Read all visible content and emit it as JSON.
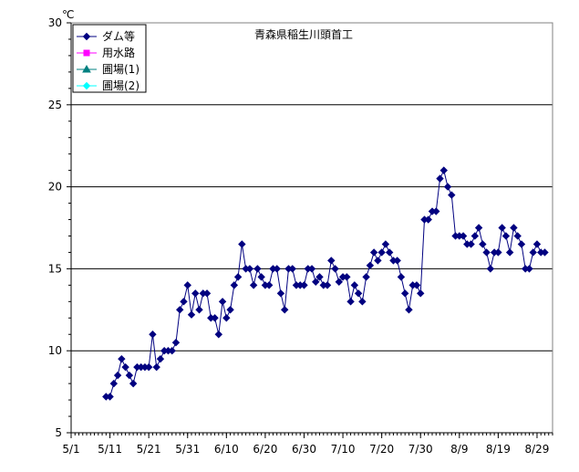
{
  "chart_data": {
    "type": "line",
    "title": "青森県稲生川頭首工",
    "unit": "℃",
    "xlabel": "",
    "ylabel": "",
    "ylim": [
      5,
      30
    ],
    "yticks": [
      5,
      10,
      15,
      20,
      25,
      30
    ],
    "xlim": [
      "5/1",
      "9/2"
    ],
    "xtick_labels": [
      "5/1",
      "5/11",
      "5/21",
      "5/31",
      "6/10",
      "6/20",
      "6/30",
      "7/10",
      "7/20",
      "7/30",
      "8/9",
      "8/19",
      "8/29"
    ],
    "grid": "horizontal at major y ticks",
    "legend": {
      "position": "top-left",
      "entries": [
        {
          "name": "ダム等",
          "color": "#000080",
          "marker": "diamond"
        },
        {
          "name": "用水路",
          "color": "#ff00ff",
          "marker": "square"
        },
        {
          "name": "圃場(1)",
          "color": "#008080",
          "marker": "triangle"
        },
        {
          "name": "圃場(2)",
          "color": "#00ffff",
          "marker": "diamond"
        }
      ]
    },
    "series": [
      {
        "name": "ダム等",
        "color": "#000080",
        "points": [
          [
            "5/10",
            7.2
          ],
          [
            "5/11",
            7.2
          ],
          [
            "5/12",
            8.0
          ],
          [
            "5/13",
            8.5
          ],
          [
            "5/14",
            9.5
          ],
          [
            "5/15",
            9.0
          ],
          [
            "5/16",
            8.5
          ],
          [
            "5/17",
            8.0
          ],
          [
            "5/18",
            9.0
          ],
          [
            "5/19",
            9.0
          ],
          [
            "5/20",
            9.0
          ],
          [
            "5/21",
            9.0
          ],
          [
            "5/22",
            11.0
          ],
          [
            "5/23",
            9.0
          ],
          [
            "5/24",
            9.5
          ],
          [
            "5/25",
            10.0
          ],
          [
            "5/26",
            10.0
          ],
          [
            "5/27",
            10.0
          ],
          [
            "5/28",
            10.5
          ],
          [
            "5/29",
            12.5
          ],
          [
            "5/30",
            13.0
          ],
          [
            "5/31",
            14.0
          ],
          [
            "6/1",
            12.2
          ],
          [
            "6/2",
            13.5
          ],
          [
            "6/3",
            12.5
          ],
          [
            "6/4",
            13.5
          ],
          [
            "6/5",
            13.5
          ],
          [
            "6/6",
            12.0
          ],
          [
            "6/7",
            12.0
          ],
          [
            "6/8",
            11.0
          ],
          [
            "6/9",
            13.0
          ],
          [
            "6/10",
            12.0
          ],
          [
            "6/11",
            12.5
          ],
          [
            "6/12",
            14.0
          ],
          [
            "6/13",
            14.5
          ],
          [
            "6/14",
            16.5
          ],
          [
            "6/15",
            15.0
          ],
          [
            "6/16",
            15.0
          ],
          [
            "6/17",
            14.0
          ],
          [
            "6/18",
            15.0
          ],
          [
            "6/19",
            14.5
          ],
          [
            "6/20",
            14.0
          ],
          [
            "6/21",
            14.0
          ],
          [
            "6/22",
            15.0
          ],
          [
            "6/23",
            15.0
          ],
          [
            "6/24",
            13.5
          ],
          [
            "6/25",
            12.5
          ],
          [
            "6/26",
            15.0
          ],
          [
            "6/27",
            15.0
          ],
          [
            "6/28",
            14.0
          ],
          [
            "6/29",
            14.0
          ],
          [
            "6/30",
            14.0
          ],
          [
            "7/1",
            15.0
          ],
          [
            "7/2",
            15.0
          ],
          [
            "7/3",
            14.2
          ],
          [
            "7/4",
            14.5
          ],
          [
            "7/5",
            14.0
          ],
          [
            "7/6",
            14.0
          ],
          [
            "7/7",
            15.5
          ],
          [
            "7/8",
            15.0
          ],
          [
            "7/9",
            14.2
          ],
          [
            "7/10",
            14.5
          ],
          [
            "7/11",
            14.5
          ],
          [
            "7/12",
            13.0
          ],
          [
            "7/13",
            14.0
          ],
          [
            "7/14",
            13.5
          ],
          [
            "7/15",
            13.0
          ],
          [
            "7/16",
            14.5
          ],
          [
            "7/17",
            15.2
          ],
          [
            "7/18",
            16.0
          ],
          [
            "7/19",
            15.5
          ],
          [
            "7/20",
            16.0
          ],
          [
            "7/21",
            16.5
          ],
          [
            "7/22",
            16.0
          ],
          [
            "7/23",
            15.5
          ],
          [
            "7/24",
            15.5
          ],
          [
            "7/25",
            14.5
          ],
          [
            "7/26",
            13.5
          ],
          [
            "7/27",
            12.5
          ],
          [
            "7/28",
            14.0
          ],
          [
            "7/29",
            14.0
          ],
          [
            "7/30",
            13.5
          ],
          [
            "7/31",
            18.0
          ],
          [
            "8/1",
            18.0
          ],
          [
            "8/2",
            18.5
          ],
          [
            "8/3",
            18.5
          ],
          [
            "8/4",
            20.5
          ],
          [
            "8/5",
            21.0
          ],
          [
            "8/6",
            20.0
          ],
          [
            "8/7",
            19.5
          ],
          [
            "8/8",
            17.0
          ],
          [
            "8/9",
            17.0
          ],
          [
            "8/10",
            17.0
          ],
          [
            "8/11",
            16.5
          ],
          [
            "8/12",
            16.5
          ],
          [
            "8/13",
            17.0
          ],
          [
            "8/14",
            17.5
          ],
          [
            "8/15",
            16.5
          ],
          [
            "8/16",
            16.0
          ],
          [
            "8/17",
            15.0
          ],
          [
            "8/18",
            16.0
          ],
          [
            "8/19",
            16.0
          ],
          [
            "8/20",
            17.5
          ],
          [
            "8/21",
            17.0
          ],
          [
            "8/22",
            16.0
          ],
          [
            "8/23",
            17.5
          ],
          [
            "8/24",
            17.0
          ],
          [
            "8/25",
            16.5
          ],
          [
            "8/26",
            15.0
          ],
          [
            "8/27",
            15.0
          ],
          [
            "8/28",
            16.0
          ],
          [
            "8/29",
            16.5
          ],
          [
            "8/30",
            16.0
          ],
          [
            "8/31",
            16.0
          ]
        ]
      },
      {
        "name": "用水路",
        "color": "#ff00ff",
        "points": []
      },
      {
        "name": "圃場(1)",
        "color": "#008080",
        "points": []
      },
      {
        "name": "圃場(2)",
        "color": "#00ffff",
        "points": []
      }
    ]
  }
}
